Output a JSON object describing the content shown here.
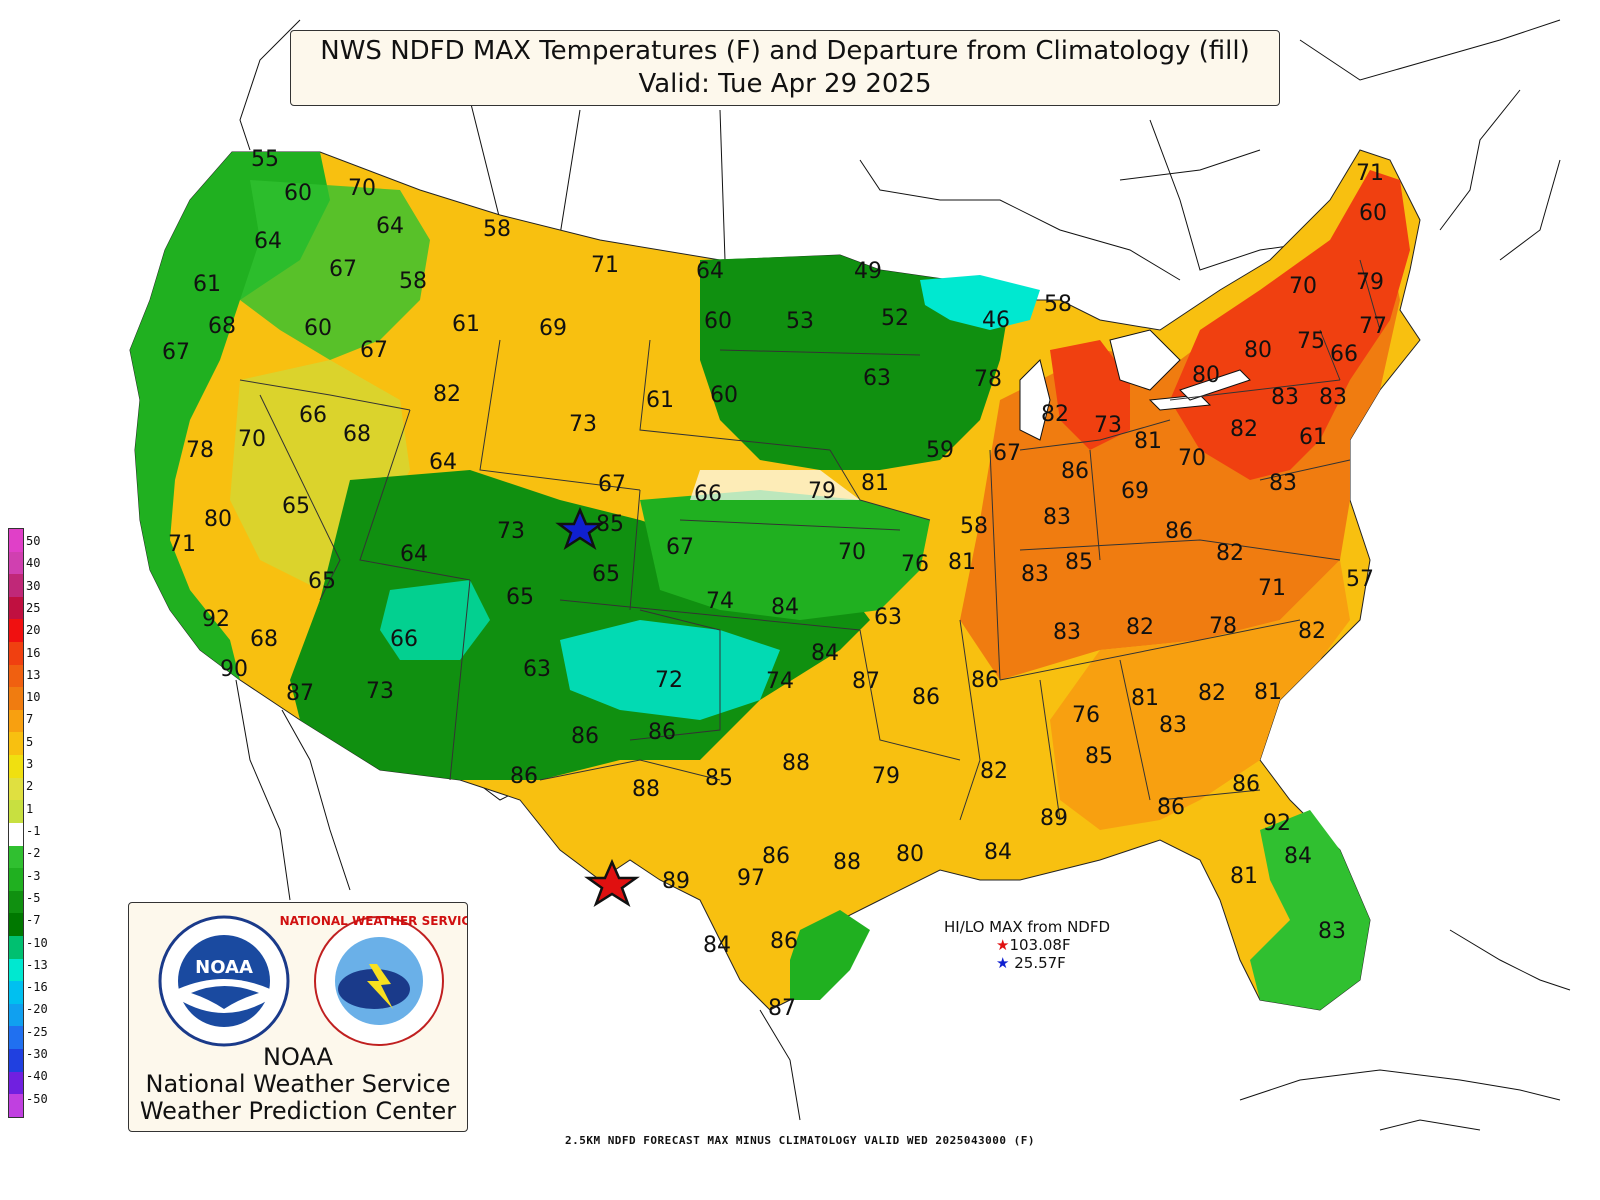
{
  "title": {
    "line1": "NWS NDFD MAX Temperatures (F) and Departure from Climatology (fill)",
    "line2": "Valid: Tue Apr 29 2025"
  },
  "legend": {
    "levels": [
      "50",
      "40",
      "30",
      "25",
      "20",
      "16",
      "13",
      "10",
      "7",
      "5",
      "3",
      "2",
      "1",
      "-1",
      "-2",
      "-3",
      "-5",
      "-7",
      "-10",
      "-13",
      "-16",
      "-20",
      "-25",
      "-30",
      "-40",
      "-50"
    ],
    "colors": [
      "#e040c8",
      "#d040b0",
      "#c02878",
      "#c01040",
      "#f01010",
      "#f04010",
      "#f06010",
      "#f07c10",
      "#f8a010",
      "#f8c010",
      "#f0e010",
      "#e0e040",
      "#c8e040",
      "#ffffff",
      "#30c030",
      "#20b020",
      "#109010",
      "#007800",
      "#00c070",
      "#00e8d0",
      "#00c0f0",
      "#10a0f0",
      "#2070f0",
      "#2040e0",
      "#7020e0",
      "#c040e0"
    ]
  },
  "logos": {
    "noaa_line": "NOAA",
    "nws_line": "National Weather Service",
    "wpc_line": "Weather Prediction Center",
    "noaa_seal": "NOAA",
    "nws_seal": "NATIONAL WEATHER SERVICE"
  },
  "hilo": {
    "header": "HI/LO MAX from NDFD",
    "hi": "103.08F",
    "lo": "25.57F",
    "hi_color": "#e01010",
    "lo_color": "#1020d0"
  },
  "footer": "2.5KM NDFD FORECAST MAX MINUS CLIMATOLOGY VALID WED 2025043000 (F)",
  "temperature_labels": [
    "55",
    "60",
    "70",
    "64",
    "58",
    "64",
    "67",
    "58",
    "71",
    "64",
    "49",
    "61",
    "68",
    "60",
    "61",
    "69",
    "60",
    "53",
    "52",
    "46",
    "58",
    "71",
    "60",
    "67",
    "67",
    "61",
    "60",
    "63",
    "78",
    "70",
    "79",
    "75",
    "77",
    "66",
    "82",
    "73",
    "70",
    "66",
    "68",
    "64",
    "73",
    "82",
    "78",
    "81",
    "80",
    "80",
    "83",
    "83",
    "82",
    "61",
    "70",
    "59",
    "67",
    "67",
    "66",
    "79",
    "81",
    "86",
    "69",
    "83",
    "65",
    "80",
    "85",
    "83",
    "86",
    "71",
    "73",
    "58",
    "64",
    "67",
    "70",
    "76",
    "81",
    "83",
    "85",
    "82",
    "65",
    "65",
    "65",
    "74",
    "84",
    "71",
    "57",
    "63",
    "66",
    "92",
    "68",
    "90",
    "87",
    "73",
    "63",
    "72",
    "74",
    "84",
    "87",
    "86",
    "86",
    "83",
    "82",
    "78",
    "82",
    "83",
    "76",
    "86",
    "86",
    "86",
    "88",
    "85",
    "88",
    "79",
    "82",
    "85",
    "81",
    "82",
    "81",
    "86",
    "89",
    "86",
    "84",
    "86",
    "88",
    "80",
    "92",
    "89",
    "97",
    "84",
    "86",
    "87",
    "81",
    "84",
    "83"
  ]
}
